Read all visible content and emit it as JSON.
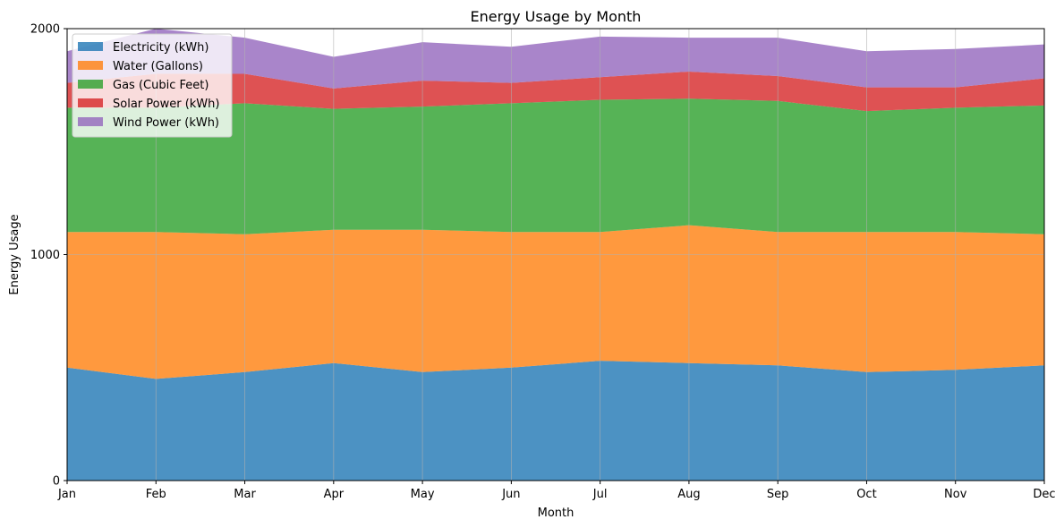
{
  "chart_data": {
    "type": "area",
    "stacked": true,
    "title": "Energy Usage by Month",
    "xlabel": "Month",
    "ylabel": "Energy Usage",
    "categories": [
      "Jan",
      "Feb",
      "Mar",
      "Apr",
      "May",
      "Jun",
      "Jul",
      "Aug",
      "Sep",
      "Oct",
      "Nov",
      "Dec"
    ],
    "ylim": [
      0,
      2000
    ],
    "yticks": [
      0,
      1000,
      2000
    ],
    "grid": true,
    "legend_position": "top-left",
    "series": [
      {
        "name": "Electricity (kWh)",
        "color": "#1f77b4",
        "values": [
          500,
          450,
          480,
          520,
          480,
          500,
          530,
          520,
          510,
          480,
          490,
          510
        ]
      },
      {
        "name": "Water (Gallons)",
        "color": "#ff7f0e",
        "values": [
          600,
          650,
          610,
          590,
          630,
          600,
          570,
          610,
          590,
          620,
          610,
          580
        ]
      },
      {
        "name": "Gas (Cubic Feet)",
        "color": "#2ca02c",
        "values": [
          550,
          550,
          580,
          535,
          545,
          570,
          585,
          560,
          580,
          535,
          550,
          570
        ]
      },
      {
        "name": "Solar Power (kWh)",
        "color": "#d62728",
        "values": [
          110,
          150,
          130,
          90,
          115,
          90,
          100,
          120,
          110,
          105,
          90,
          120
        ]
      },
      {
        "name": "Wind Power (kWh)",
        "color": "#9467bd",
        "values": [
          140,
          200,
          160,
          140,
          170,
          160,
          180,
          150,
          170,
          160,
          170,
          150
        ]
      }
    ]
  }
}
